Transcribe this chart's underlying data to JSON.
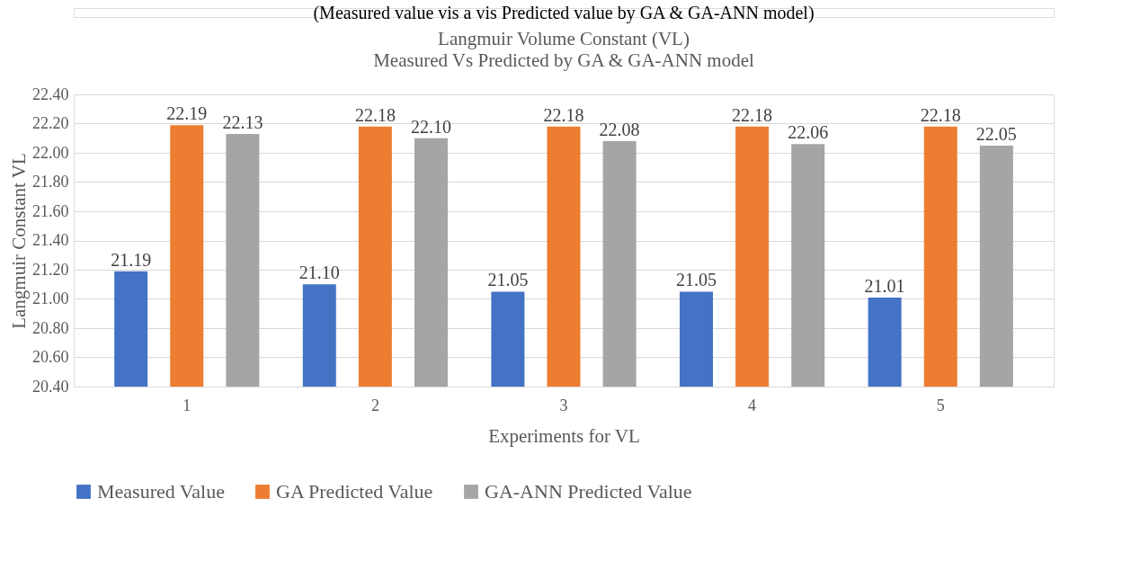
{
  "chart_data": {
    "type": "bar",
    "title": "Langmuir Volume Constant (VL)",
    "subtitle": "Measured Vs Predicted by GA  & GA-ANN model",
    "xlabel": "Experiments for VL",
    "ylabel": "Langmuir Constant VL",
    "annotations": [
      "(Measured value vis a vis Predicted value by GA & GA-ANN model)"
    ],
    "categories": [
      "1",
      "2",
      "3",
      "4",
      "5"
    ],
    "series": [
      {
        "name": "Measured Value",
        "color": "#4472c4",
        "values": [
          21.19,
          21.1,
          21.05,
          21.05,
          21.01
        ],
        "value_labels": [
          "21.19",
          "21.10",
          "21.05",
          "21.05",
          "21.01"
        ]
      },
      {
        "name": "GA Predicted Value",
        "color": "#ed7d31",
        "values": [
          22.19,
          22.18,
          22.18,
          22.18,
          22.18
        ],
        "value_labels": [
          "22.19",
          "22.18",
          "22.18",
          "22.18",
          "22.18"
        ]
      },
      {
        "name": "GA-ANN Predicted Value",
        "color": "#a5a5a5",
        "values": [
          22.13,
          22.1,
          22.08,
          22.06,
          22.05
        ],
        "value_labels": [
          "22.13",
          "22.10",
          "22.08",
          "22.06",
          "22.05"
        ]
      }
    ],
    "ylim": [
      20.4,
      22.4
    ],
    "yticks": [
      {
        "value": 20.4,
        "label": "20.40"
      },
      {
        "value": 20.6,
        "label": "20.60"
      },
      {
        "value": 20.8,
        "label": "20.80"
      },
      {
        "value": 21.0,
        "label": "21.00"
      },
      {
        "value": 21.2,
        "label": "21.20"
      },
      {
        "value": 21.4,
        "label": "21.40"
      },
      {
        "value": 21.6,
        "label": "21.60"
      },
      {
        "value": 21.8,
        "label": "21.80"
      },
      {
        "value": 22.0,
        "label": "22.00"
      },
      {
        "value": 22.2,
        "label": "22.20"
      },
      {
        "value": 22.4,
        "label": "22.40"
      }
    ],
    "grid": "y",
    "legend": "bottom"
  }
}
